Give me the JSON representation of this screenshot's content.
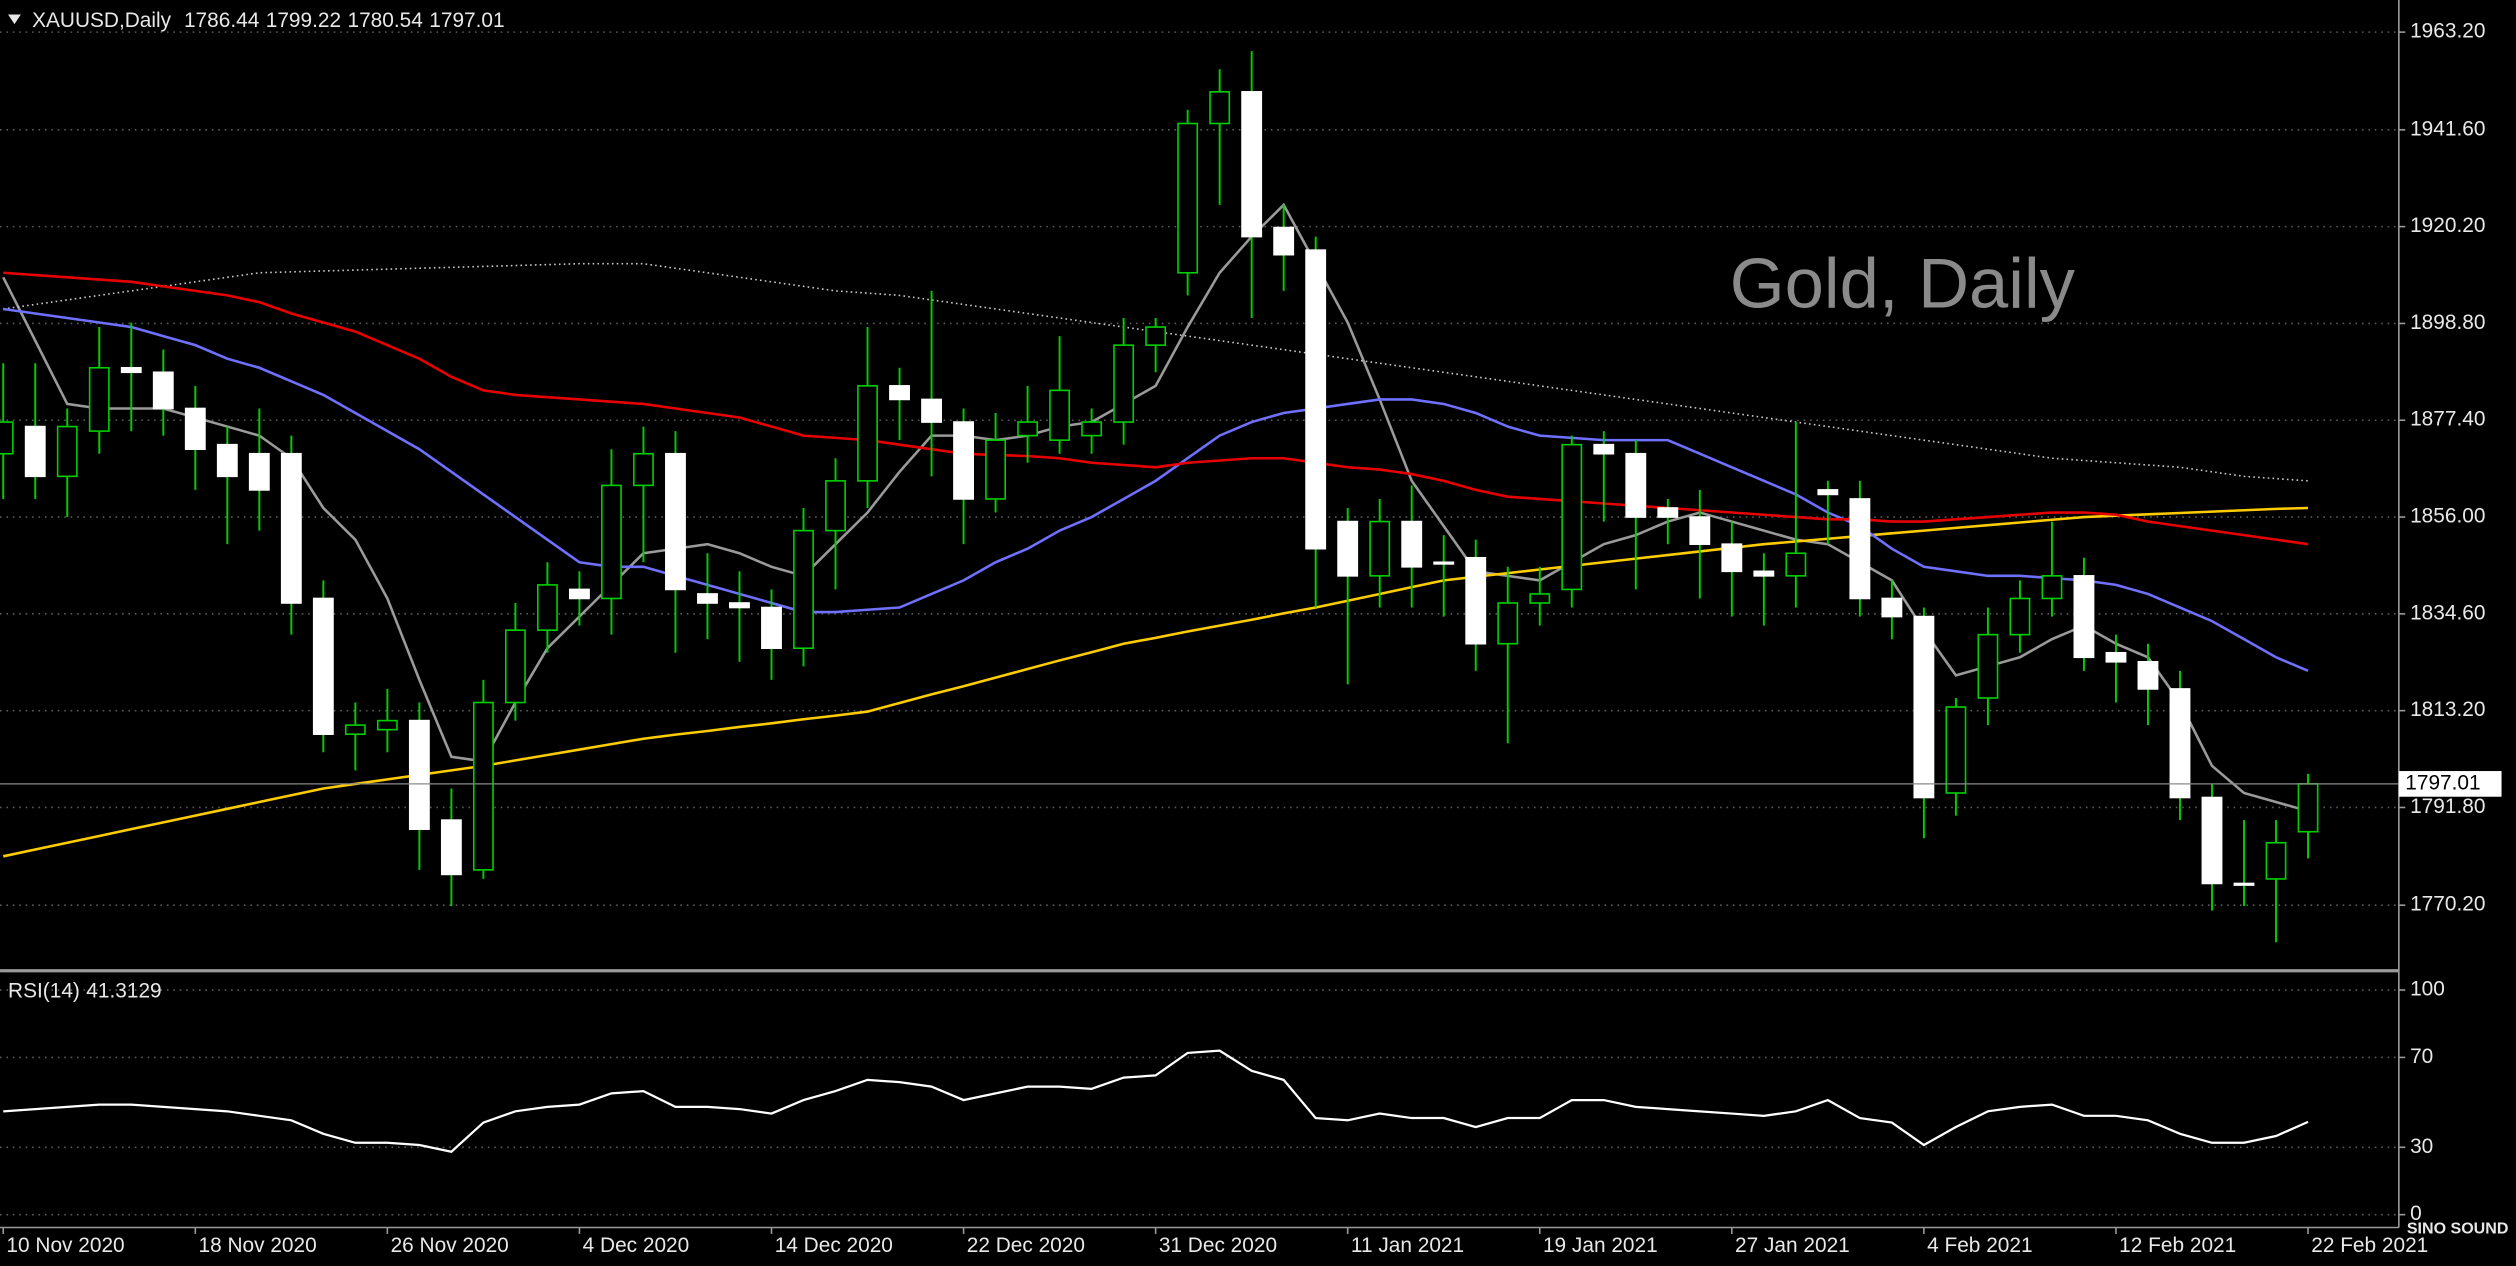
{
  "chart_data": {
    "type": "candlestick",
    "symbol": "XAUUSD,Daily",
    "watermark": "Gold, Daily",
    "logo": "SINO SOUND",
    "categories": [
      "10 Nov 2020",
      null,
      null,
      null,
      null,
      null,
      "18 Nov 2020",
      null,
      null,
      null,
      null,
      null,
      "26 Nov 2020",
      null,
      null,
      null,
      null,
      null,
      "4 Dec 2020",
      null,
      null,
      null,
      null,
      null,
      "14 Dec 2020",
      null,
      null,
      null,
      null,
      null,
      "22 Dec 2020",
      null,
      null,
      null,
      null,
      null,
      "31 Dec 2020",
      null,
      null,
      null,
      null,
      null,
      "11 Jan 2021",
      null,
      null,
      null,
      null,
      null,
      "19 Jan 2021",
      null,
      null,
      null,
      null,
      null,
      "27 Jan 2021",
      null,
      null,
      null,
      null,
      null,
      "4 Feb 2021",
      null,
      null,
      null,
      null,
      null,
      "12 Feb 2021",
      null,
      null,
      null,
      null,
      null,
      "22 Feb 2021"
    ],
    "open": [
      1870,
      1876,
      1865,
      1875,
      1889,
      1888,
      1880,
      1872,
      1870,
      1870,
      1838,
      1808,
      1809,
      1811,
      1789,
      1778,
      1815,
      1831,
      1840,
      1838,
      1863,
      1870,
      1839,
      1837,
      1836,
      1827,
      1853,
      1864,
      1885,
      1882,
      1877,
      1860,
      1874,
      1873,
      1874,
      1877,
      1894,
      1910,
      1943,
      1950,
      1920,
      1915,
      1855,
      1843,
      1855,
      1846,
      1847,
      1828,
      1837,
      1840,
      1872,
      1870,
      1858,
      1856,
      1850,
      1844,
      1843,
      1862,
      1860,
      1838,
      1834,
      1795,
      1816,
      1830,
      1838,
      1843,
      1826,
      1824,
      1818,
      1794,
      1775,
      1776,
      1786.44
    ],
    "high": [
      1890,
      1890,
      1880,
      1898,
      1899,
      1893,
      1885,
      1876,
      1880,
      1874,
      1842,
      1815,
      1818,
      1815,
      1796,
      1820,
      1837,
      1846,
      1844,
      1871,
      1876,
      1875,
      1848,
      1844,
      1840,
      1858,
      1869,
      1898,
      1889,
      1906,
      1880,
      1879,
      1885,
      1896,
      1880,
      1900,
      1900,
      1946,
      1955,
      1959,
      1925,
      1918,
      1858,
      1860,
      1863,
      1852,
      1851,
      1845,
      1845,
      1874,
      1875,
      1873,
      1860,
      1862,
      1855,
      1848,
      1877,
      1864,
      1864,
      1842,
      1836,
      1816,
      1836,
      1842,
      1855,
      1847,
      1830,
      1828,
      1822,
      1797,
      1789,
      1789,
      1799.22
    ],
    "low": [
      1860,
      1860,
      1856,
      1870,
      1875,
      1874,
      1862,
      1850,
      1853,
      1830,
      1804,
      1800,
      1804,
      1778,
      1770,
      1776,
      1811,
      1826,
      1832,
      1830,
      1846,
      1826,
      1829,
      1824,
      1820,
      1823,
      1840,
      1858,
      1873,
      1865,
      1850,
      1857,
      1868,
      1870,
      1870,
      1872,
      1888,
      1905,
      1925,
      1900,
      1906,
      1836,
      1819,
      1836,
      1836,
      1834,
      1822,
      1806,
      1832,
      1836,
      1855,
      1840,
      1850,
      1838,
      1834,
      1832,
      1836,
      1850,
      1834,
      1829,
      1785,
      1790,
      1810,
      1826,
      1834,
      1822,
      1815,
      1810,
      1789,
      1769,
      1770,
      1762,
      1780.54
    ],
    "close": [
      1877,
      1865,
      1876,
      1889,
      1888,
      1880,
      1871,
      1865,
      1862,
      1837,
      1808,
      1810,
      1811,
      1787,
      1777,
      1815,
      1831,
      1841,
      1838,
      1863,
      1870,
      1840,
      1837,
      1836,
      1827,
      1853,
      1864,
      1885,
      1882,
      1877,
      1860,
      1873,
      1877,
      1884,
      1877,
      1894,
      1898,
      1943,
      1950,
      1918,
      1914,
      1849,
      1843,
      1855,
      1845,
      1846,
      1828,
      1837,
      1839,
      1872,
      1870,
      1856,
      1856,
      1850,
      1844,
      1843,
      1848,
      1861,
      1838,
      1834,
      1794,
      1814,
      1830,
      1838,
      1843,
      1825,
      1824,
      1818,
      1794,
      1775,
      1775,
      1784,
      1797.01
    ],
    "bull_color": "#000000",
    "bear_color": "#ffffff",
    "wick_color": "#00d000",
    "overlays": [
      {
        "color": "#9a9a9a",
        "values": [
          1909,
          1895,
          1881,
          1880,
          1880,
          1880,
          1878,
          1876,
          1874,
          1869,
          1858,
          1851,
          1838,
          1820,
          1803,
          1802,
          1815,
          1827,
          1834,
          1841,
          1848,
          1849,
          1850,
          1848,
          1845,
          1843,
          1850,
          1857,
          1866,
          1874,
          1874,
          1873,
          1874,
          1876,
          1877,
          1881,
          1885,
          1898,
          1910,
          1918,
          1925,
          1912,
          1899,
          1882,
          1864,
          1854,
          1844,
          1843,
          1842,
          1846,
          1850,
          1852,
          1855,
          1857,
          1855,
          1853,
          1851,
          1850,
          1846,
          1842,
          1831,
          1821,
          1823,
          1825,
          1829,
          1832,
          1828,
          1825,
          1815,
          1801,
          1795,
          1793,
          1791
        ]
      },
      {
        "color": "#c8c8c8",
        "dotted": true,
        "values": [
          1902,
          1903,
          1904,
          1905,
          1906,
          1907,
          1908,
          1909,
          1910,
          1910.2,
          1910.4,
          1910.6,
          1910.8,
          1911,
          1911.2,
          1911.4,
          1911.6,
          1911.8,
          1912,
          1912,
          1912,
          1911,
          1910,
          1909,
          1908,
          1907,
          1906,
          1905.5,
          1905,
          1904,
          1903,
          1902,
          1901,
          1900,
          1899,
          1898,
          1897,
          1896,
          1895,
          1894,
          1893,
          1892,
          1891,
          1890,
          1889,
          1888,
          1887,
          1886,
          1885,
          1884,
          1883,
          1882,
          1881,
          1880,
          1879,
          1878,
          1877,
          1876,
          1875,
          1874,
          1873,
          1872,
          1871,
          1870,
          1869,
          1868.5,
          1868,
          1867.5,
          1867,
          1866,
          1865,
          1864.5,
          1864
        ]
      },
      {
        "color": "#ffcc00",
        "values": [
          1781,
          1782.5,
          1784,
          1785.5,
          1787,
          1788.5,
          1790,
          1791.5,
          1793,
          1794.5,
          1796,
          1797,
          1798,
          1799,
          1800,
          1801,
          1802.2,
          1803.4,
          1804.6,
          1805.8,
          1807,
          1807.9,
          1808.7,
          1809.6,
          1810.4,
          1811.3,
          1812.1,
          1813,
          1814.9,
          1816.8,
          1818.6,
          1820.5,
          1822.4,
          1824.3,
          1826.1,
          1828,
          1829.3,
          1830.7,
          1832,
          1833.3,
          1834.7,
          1836,
          1837.5,
          1839,
          1840.5,
          1842,
          1842.8,
          1843.6,
          1844.4,
          1845.2,
          1846,
          1846.8,
          1847.6,
          1848.4,
          1849.2,
          1850,
          1850.6,
          1851.2,
          1851.8,
          1852.4,
          1853,
          1853.6,
          1854.2,
          1854.8,
          1855.4,
          1856,
          1856.3,
          1856.6,
          1856.9,
          1857.2,
          1857.5,
          1857.8,
          1858
        ]
      },
      {
        "color": "#7070ff",
        "values": [
          1902,
          1901,
          1900,
          1899,
          1898,
          1896,
          1894,
          1891,
          1889,
          1886,
          1883,
          1879,
          1875,
          1871,
          1866,
          1861,
          1856,
          1851,
          1846,
          1845,
          1845,
          1843,
          1841,
          1839,
          1837,
          1835,
          1835,
          1835.5,
          1836,
          1839,
          1842,
          1846,
          1849,
          1853,
          1856,
          1860,
          1864,
          1869,
          1874,
          1877,
          1879,
          1880,
          1881,
          1882,
          1882,
          1881,
          1879,
          1876,
          1874,
          1873.5,
          1873,
          1873,
          1873,
          1870,
          1867,
          1864,
          1861,
          1857,
          1854,
          1849,
          1845,
          1844,
          1843,
          1843,
          1842.5,
          1842,
          1841,
          1839,
          1836,
          1833,
          1829,
          1825,
          1822
        ]
      },
      {
        "color": "#e80000",
        "values": [
          1910,
          1909.5,
          1909,
          1908.5,
          1908,
          1907,
          1906,
          1905,
          1903.5,
          1901,
          1899,
          1897,
          1894,
          1891,
          1887,
          1884,
          1883,
          1882.5,
          1882,
          1881.5,
          1881,
          1880,
          1879,
          1878,
          1876,
          1874,
          1873.5,
          1873,
          1872,
          1871,
          1870,
          1869.7,
          1869.5,
          1869,
          1868,
          1867.5,
          1867,
          1868,
          1868.5,
          1869,
          1869,
          1868,
          1867,
          1866.5,
          1865.5,
          1864,
          1862,
          1860.5,
          1860,
          1859.5,
          1859,
          1858.5,
          1858,
          1857.5,
          1857,
          1856.5,
          1856,
          1855.5,
          1855.5,
          1855,
          1855,
          1855.5,
          1856,
          1856.5,
          1857,
          1857,
          1856.5,
          1855,
          1854,
          1853,
          1852,
          1851,
          1850
        ]
      }
    ],
    "ylim": [
      1755.7,
      1970.3
    ],
    "yticks": [
      {
        "value": 1963.2,
        "label": "1963.20"
      },
      {
        "value": 1941.6,
        "label": "1941.60"
      },
      {
        "value": 1920.2,
        "label": "1920.20"
      },
      {
        "value": 1898.8,
        "label": "1898.80"
      },
      {
        "value": 1877.4,
        "label": "1877.40"
      },
      {
        "value": 1856,
        "label": "1856.00"
      },
      {
        "value": 1834.6,
        "label": "1834.60"
      },
      {
        "value": 1813.2,
        "label": "1813.20"
      },
      {
        "value": 1791.8,
        "label": "1791.80"
      },
      {
        "value": 1770.2,
        "label": "1770.20"
      }
    ],
    "grid": true,
    "indicator": {
      "label": "RSI(14)",
      "color": "#ffffff",
      "values": [
        46,
        47,
        48,
        49,
        49,
        48,
        47,
        46,
        44,
        42,
        36,
        32,
        32,
        31,
        28,
        41,
        46,
        48,
        49,
        54,
        55,
        48,
        48,
        47,
        45,
        51,
        55,
        60,
        59,
        57,
        51,
        54,
        57,
        57,
        56,
        61,
        62,
        72,
        73,
        64,
        60,
        43,
        42,
        45,
        43,
        43,
        39,
        43,
        43,
        51,
        51,
        48,
        47,
        46,
        45,
        44,
        46,
        51,
        43,
        41,
        31,
        39,
        46,
        48,
        49,
        44,
        44,
        42,
        36,
        32,
        32,
        35,
        41.3129
      ],
      "ylim": [
        0,
        100
      ],
      "yticks": [
        100,
        70,
        30,
        0
      ]
    }
  }
}
